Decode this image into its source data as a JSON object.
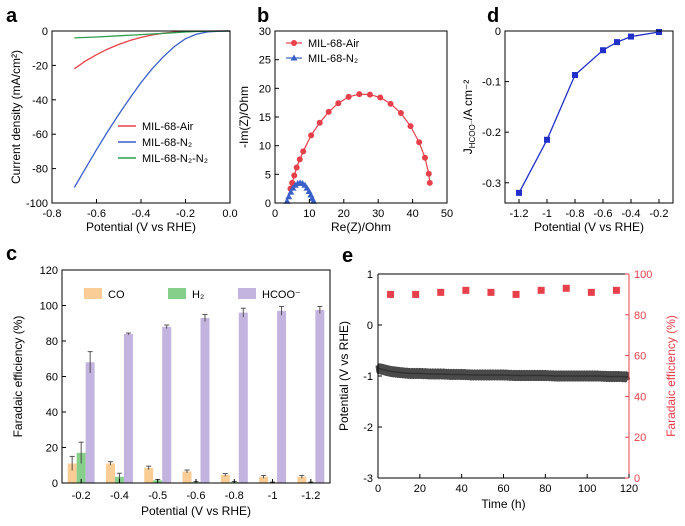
{
  "panels": {
    "a": {
      "letter": "a",
      "xlabel": "Potential (V vs RHE)",
      "ylabel": "Current density (mA/cm²)",
      "xlim": [
        -0.8,
        0.0
      ],
      "ylim": [
        -100,
        0
      ],
      "xticks": [
        -0.8,
        -0.6,
        -0.4,
        -0.2,
        0.0
      ],
      "xticklabels": [
        "-0.8",
        "-0.6",
        "-0.4",
        "-0.2",
        "0.0"
      ],
      "yticks": [
        -100,
        -80,
        -60,
        -40,
        -20,
        0
      ],
      "yticklabels": [
        "-100",
        "-80",
        "-60",
        "-40",
        "-20",
        "0"
      ],
      "series": [
        {
          "name": "MIL-68-Air",
          "color": "#e8404a",
          "x": [
            -0.7,
            -0.65,
            -0.6,
            -0.55,
            -0.5,
            -0.45,
            -0.4,
            -0.35,
            -0.3,
            -0.25,
            -0.2,
            -0.15,
            -0.1,
            -0.05,
            0.0
          ],
          "y": [
            -22,
            -17.5,
            -13.8,
            -10.5,
            -7.8,
            -5.5,
            -3.7,
            -2.3,
            -1.3,
            -0.7,
            -0.35,
            -0.15,
            -0.05,
            0,
            0
          ]
        },
        {
          "name": "MIL-68-N₂",
          "color": "#3a5fc8",
          "x": [
            -0.7,
            -0.65,
            -0.6,
            -0.55,
            -0.5,
            -0.45,
            -0.4,
            -0.35,
            -0.3,
            -0.25,
            -0.2,
            -0.15,
            -0.1,
            -0.05,
            0.0
          ],
          "y": [
            -91,
            -80,
            -69,
            -58.5,
            -48.5,
            -39,
            -30,
            -22,
            -15,
            -9,
            -4.5,
            -1.8,
            -0.5,
            -0.1,
            0
          ]
        },
        {
          "name": "MIL-68-N₂-N₂",
          "color": "#2e9e4f",
          "x": [
            -0.7,
            -0.6,
            -0.5,
            -0.4,
            -0.3,
            -0.25,
            -0.2,
            -0.15,
            -0.1,
            0.0
          ],
          "y": [
            -4,
            -3.5,
            -2.8,
            -2.1,
            -1.4,
            -1.0,
            -0.6,
            -0.3,
            -0.1,
            0
          ]
        }
      ]
    },
    "b": {
      "letter": "b",
      "xlabel": "Re(Z)/Ohm",
      "ylabel": "-Im(Z)/Ohm",
      "xlim": [
        0,
        50
      ],
      "ylim": [
        0,
        30
      ],
      "xticks": [
        0,
        10,
        20,
        30,
        40,
        50
      ],
      "xticklabels": [
        "0",
        "10",
        "20",
        "30",
        "40",
        "50"
      ],
      "yticks": [
        0,
        5,
        10,
        15,
        20,
        25,
        30
      ],
      "yticklabels": [
        "0",
        "5",
        "10",
        "15",
        "20",
        "25",
        "30"
      ],
      "series": [
        {
          "name": "MIL-68-Air",
          "color": "#e8404a",
          "marker": "circle",
          "x": [
            4.5,
            5.0,
            5.6,
            6.3,
            7.2,
            8.2,
            10.5,
            13.0,
            15.6,
            18.4,
            21.4,
            24.5,
            27.6,
            30.6,
            33.6,
            36.6,
            39.4,
            41.9,
            43.6,
            44.7,
            45.0
          ],
          "y": [
            2.5,
            3.5,
            4.8,
            6.2,
            7.6,
            9.0,
            11.8,
            14.0,
            15.9,
            17.4,
            18.5,
            19.0,
            18.9,
            18.4,
            17.3,
            15.7,
            13.4,
            10.6,
            7.9,
            5.1,
            3.5
          ]
        },
        {
          "name": "MIL-68-N₂",
          "color": "#3a5fc8",
          "marker": "triangle",
          "x": [
            3.5,
            4.0,
            4.6,
            5.2,
            5.9,
            6.6,
            7.3,
            8.0,
            8.7,
            9.3,
            9.9,
            10.4,
            10.8,
            11.2
          ],
          "y": [
            0.3,
            1.1,
            1.9,
            2.6,
            3.1,
            3.4,
            3.5,
            3.4,
            3.1,
            2.6,
            2.0,
            1.4,
            0.8,
            0.3
          ]
        }
      ]
    },
    "c": {
      "letter": "c",
      "type": "bar",
      "xlabel": "Potential (V vs RHE)",
      "ylabel": "Faradaic efficiency (%)",
      "ylim": [
        0,
        120
      ],
      "yticks": [
        0,
        20,
        40,
        60,
        80,
        100,
        120
      ],
      "yticklabels": [
        "0",
        "20",
        "40",
        "60",
        "80",
        "100",
        "120"
      ],
      "categories": [
        "-0.2",
        "-0.4",
        "-0.5",
        "-0.6",
        "-0.8",
        "-1",
        "-1.2"
      ],
      "series": [
        {
          "name": "CO",
          "color": "#f9cd95",
          "values": [
            11,
            11,
            8.5,
            6.5,
            4.5,
            3.5,
            3.5
          ],
          "errors": [
            4,
            1,
            1,
            0.8,
            0.8,
            0.8,
            0.8
          ]
        },
        {
          "name": "H₂",
          "color": "#86cf8a",
          "values": [
            17,
            3.5,
            1.5,
            0.5,
            0.5,
            0.3,
            0.3
          ],
          "errors": [
            6,
            2,
            0.5,
            0.3,
            0.3,
            0.2,
            0.2
          ]
        },
        {
          "name": "HCOO⁻",
          "color": "#c2b4df",
          "values": [
            68,
            84,
            88,
            93,
            96,
            97,
            97.5
          ],
          "errors": [
            6,
            0.5,
            1,
            2,
            2.5,
            2.5,
            2
          ]
        }
      ]
    },
    "d": {
      "letter": "d",
      "xlabel": "Potential (V vs RHE)",
      "ylabel": "J",
      "ylabel_sub": "HCOO⁻",
      "ylabel_tail": "/A cm⁻²",
      "xlim": [
        -1.3,
        -0.1
      ],
      "ylim": [
        -0.34,
        0
      ],
      "xticks": [
        -1.2,
        -1.0,
        -0.8,
        -0.6,
        -0.4,
        -0.2
      ],
      "xticklabels": [
        "-1.2",
        "-1",
        "-0.8",
        "-0.6",
        "-0.4",
        "-0.2"
      ],
      "yticks": [
        -0.3,
        -0.2,
        -0.1,
        0
      ],
      "yticklabels": [
        "-0.3",
        "-0.2",
        "-0.1",
        "0"
      ],
      "series": [
        {
          "color": "#2030c8",
          "marker": "square",
          "x": [
            -1.2,
            -1.0,
            -0.8,
            -0.6,
            -0.5,
            -0.4,
            -0.2
          ],
          "y": [
            -0.32,
            -0.215,
            -0.087,
            -0.038,
            -0.022,
            -0.011,
            -0.002
          ]
        }
      ]
    },
    "e": {
      "letter": "e",
      "xlabel": "Time (h)",
      "ylabel_left": "Potential (V vs RHE)",
      "ylabel_right": "Faradaic efficiency (%)",
      "xlim": [
        0,
        120
      ],
      "ylim_left": [
        -3,
        1
      ],
      "ylim_right": [
        0,
        100
      ],
      "xticks": [
        0,
        20,
        40,
        60,
        80,
        100,
        120
      ],
      "xticklabels": [
        "0",
        "20",
        "40",
        "60",
        "80",
        "100",
        "120"
      ],
      "yticks_left": [
        -3,
        -2,
        -1,
        0,
        1
      ],
      "yticklabels_left": [
        "-3",
        "-2",
        "-1",
        "0",
        "1"
      ],
      "yticks_right": [
        0,
        20,
        40,
        60,
        80,
        100
      ],
      "yticklabels_right": [
        "0",
        "20",
        "40",
        "60",
        "80",
        "100"
      ],
      "potential_color": "#4a4a4a",
      "fe_color": "#e8404a",
      "potential": {
        "x": [
          0,
          3,
          6,
          10,
          15,
          20,
          25,
          30,
          35,
          40,
          45,
          50,
          55,
          60,
          65,
          70,
          75,
          80,
          85,
          90,
          95,
          100,
          105,
          110,
          115,
          120
        ],
        "y": [
          -0.85,
          -0.88,
          -0.91,
          -0.93,
          -0.95,
          -0.95,
          -0.96,
          -0.96,
          -0.97,
          -0.97,
          -0.98,
          -0.98,
          -0.98,
          -0.98,
          -0.99,
          -0.99,
          -0.99,
          -0.99,
          -1.0,
          -1.0,
          -1.0,
          -1.0,
          -1.0,
          -1.01,
          -1.01,
          -1.02
        ]
      },
      "fe": {
        "x": [
          6,
          18,
          30,
          42,
          54,
          66,
          78,
          90,
          102,
          114
        ],
        "y": [
          90,
          90,
          91,
          92,
          91,
          90,
          92,
          93,
          91,
          92
        ]
      }
    }
  }
}
